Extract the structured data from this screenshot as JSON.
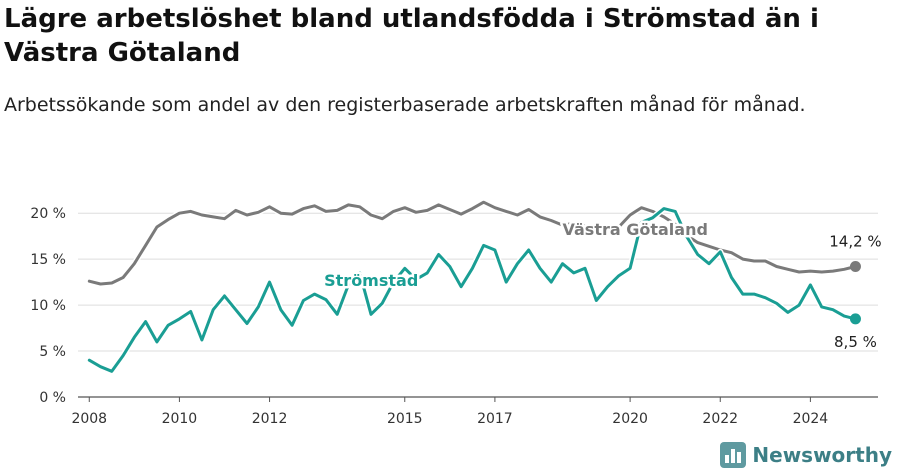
{
  "title": "Lägre arbetslöshet bland utlandsfödda i Strömstad än i Västra Götaland",
  "subtitle": "Arbetssökande som andel av den registerbaserade arbetskraften månad för månad.",
  "brand": {
    "name": "Newsworthy",
    "logo_icon": "bar-chart-icon"
  },
  "chart_data": {
    "type": "line",
    "x_unit": "year",
    "xlim": [
      2007.75,
      2025.5
    ],
    "ylim": [
      0,
      21
    ],
    "y_ticks": [
      0,
      5,
      10,
      15,
      20
    ],
    "y_tick_labels": [
      "0 %",
      "5 %",
      "10 %",
      "15 %",
      "20 %"
    ],
    "x_ticks": [
      2008,
      2010,
      2012,
      2015,
      2017,
      2020,
      2022,
      2024
    ],
    "x_tick_labels": [
      "2008",
      "2010",
      "2012",
      "2015",
      "2017",
      "2020",
      "2022",
      "2024"
    ],
    "grid": true,
    "series": [
      {
        "name": "Västra Götaland",
        "color": "#7a7a7a",
        "end_label": "14,2 %",
        "x": [
          2008,
          2008.25,
          2008.5,
          2008.75,
          2009,
          2009.25,
          2009.5,
          2009.75,
          2010,
          2010.25,
          2010.5,
          2010.75,
          2011,
          2011.25,
          2011.5,
          2011.75,
          2012,
          2012.25,
          2012.5,
          2012.75,
          2013,
          2013.25,
          2013.5,
          2013.75,
          2014,
          2014.25,
          2014.5,
          2014.75,
          2015,
          2015.25,
          2015.5,
          2015.75,
          2016,
          2016.25,
          2016.5,
          2016.75,
          2017,
          2017.25,
          2017.5,
          2017.75,
          2018,
          2018.25,
          2018.5,
          2018.75,
          2019,
          2019.25,
          2019.5,
          2019.75,
          2020,
          2020.25,
          2020.5,
          2020.75,
          2021,
          2021.25,
          2021.5,
          2021.75,
          2022,
          2022.25,
          2022.5,
          2022.75,
          2023,
          2023.25,
          2023.5,
          2023.75,
          2024,
          2024.25,
          2024.5,
          2024.75,
          2025
        ],
        "values": [
          12.6,
          12.3,
          12.4,
          13.0,
          14.5,
          16.5,
          18.5,
          19.3,
          20.0,
          20.2,
          19.8,
          19.6,
          19.4,
          20.3,
          19.8,
          20.1,
          20.7,
          20.0,
          19.9,
          20.5,
          20.8,
          20.2,
          20.3,
          20.9,
          20.7,
          19.8,
          19.4,
          20.2,
          20.6,
          20.1,
          20.3,
          20.9,
          20.4,
          19.9,
          20.5,
          21.2,
          20.6,
          20.2,
          19.8,
          20.4,
          19.6,
          19.2,
          18.7,
          18.9,
          18.6,
          18.4,
          18.2,
          18.5,
          19.8,
          20.6,
          20.2,
          19.6,
          18.8,
          17.6,
          16.8,
          16.4,
          16.0,
          15.7,
          15.0,
          14.8,
          14.8,
          14.2,
          13.9,
          13.6,
          13.7,
          13.6,
          13.7,
          13.9,
          14.2
        ]
      },
      {
        "name": "Strömstad",
        "color": "#1a9e94",
        "end_label": "8,5 %",
        "x": [
          2008,
          2008.25,
          2008.5,
          2008.75,
          2009,
          2009.25,
          2009.5,
          2009.75,
          2010,
          2010.25,
          2010.5,
          2010.75,
          2011,
          2011.25,
          2011.5,
          2011.75,
          2012,
          2012.25,
          2012.5,
          2012.75,
          2013,
          2013.25,
          2013.5,
          2013.75,
          2014,
          2014.25,
          2014.5,
          2014.75,
          2015,
          2015.25,
          2015.5,
          2015.75,
          2016,
          2016.25,
          2016.5,
          2016.75,
          2017,
          2017.25,
          2017.5,
          2017.75,
          2018,
          2018.25,
          2018.5,
          2018.75,
          2019,
          2019.25,
          2019.5,
          2019.75,
          2020,
          2020.25,
          2020.5,
          2020.75,
          2021,
          2021.25,
          2021.5,
          2021.75,
          2022,
          2022.25,
          2022.5,
          2022.75,
          2023,
          2023.25,
          2023.5,
          2023.75,
          2024,
          2024.25,
          2024.5,
          2024.75,
          2025
        ],
        "values": [
          4.0,
          3.3,
          2.8,
          4.5,
          6.5,
          8.2,
          6.0,
          7.8,
          8.5,
          9.3,
          6.2,
          9.5,
          11.0,
          9.5,
          8.0,
          9.8,
          12.5,
          9.5,
          7.8,
          10.5,
          11.2,
          10.6,
          9.0,
          12.2,
          13.5,
          9.0,
          10.2,
          12.5,
          14.0,
          12.8,
          13.5,
          15.5,
          14.2,
          12.0,
          14.0,
          16.5,
          16.0,
          12.5,
          14.5,
          16.0,
          14.0,
          12.5,
          14.5,
          13.5,
          14.0,
          10.5,
          12.0,
          13.2,
          14.0,
          19.0,
          19.5,
          20.5,
          20.2,
          17.5,
          15.5,
          14.5,
          15.8,
          13.0,
          11.2,
          11.2,
          10.8,
          10.2,
          9.2,
          10.0,
          12.2,
          9.8,
          9.5,
          8.8,
          8.5
        ]
      }
    ]
  }
}
